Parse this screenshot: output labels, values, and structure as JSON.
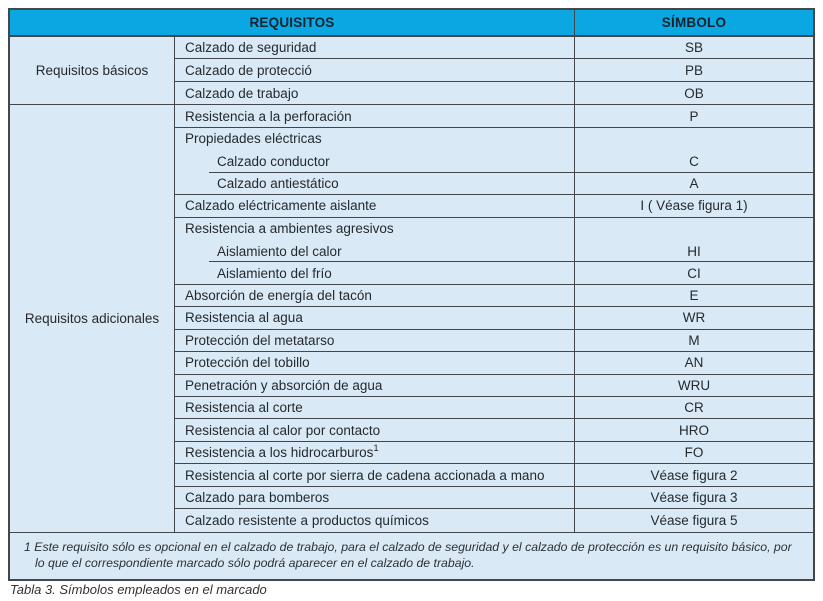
{
  "colors": {
    "header_bg": "#0aa7e2",
    "row_bg": "#d9eaf6",
    "border": "#43474b",
    "header_text": "#10242f",
    "body_text": "#25292d"
  },
  "table": {
    "header": {
      "requisitos": "REQUISITOS",
      "simbolo": "SÍMBOLO"
    },
    "groups": [
      {
        "label": "Requisitos básicos",
        "rows": [
          {
            "req": "Calzado de seguridad",
            "sym": "SB",
            "divider": "full",
            "indent": false
          },
          {
            "req": "Calzado de protecció",
            "sym": "PB",
            "divider": "full",
            "indent": false
          },
          {
            "req": "Calzado de trabajo",
            "sym": "OB",
            "divider": "full",
            "indent": false
          }
        ]
      },
      {
        "label": "Requisitos adicionales",
        "rows": [
          {
            "req": "Resistencia a la perforación",
            "sym": "P",
            "divider": "full",
            "indent": false
          },
          {
            "req": "Propiedades eléctricas",
            "sym": "",
            "divider": "none",
            "indent": false
          },
          {
            "req": "Calzado conductor",
            "sym": "C",
            "divider": "partial",
            "indent": true
          },
          {
            "req": "Calzado antiestático",
            "sym": "A",
            "divider": "full",
            "indent": true
          },
          {
            "req": "Calzado eléctricamente aislante",
            "sym": "I ( Véase figura 1)",
            "divider": "full",
            "indent": false
          },
          {
            "req": "Resistencia a ambientes agresivos",
            "sym": "",
            "divider": "none",
            "indent": false
          },
          {
            "req": "Aislamiento del calor",
            "sym": "HI",
            "divider": "partial",
            "indent": true
          },
          {
            "req": "Aislamiento del frío",
            "sym": "CI",
            "divider": "full",
            "indent": true
          },
          {
            "req": "Absorción de energía del tacón",
            "sym": "E",
            "divider": "full",
            "indent": false
          },
          {
            "req": "Resistencia al agua",
            "sym": "WR",
            "divider": "full",
            "indent": false
          },
          {
            "req": "Protección del metatarso",
            "sym": "M",
            "divider": "full",
            "indent": false
          },
          {
            "req": "Protección del tobillo",
            "sym": "AN",
            "divider": "full",
            "indent": false
          },
          {
            "req": "Penetración y absorción de agua",
            "sym": "WRU",
            "divider": "full",
            "indent": false
          },
          {
            "req": "Resistencia al corte",
            "sym": "CR",
            "divider": "full",
            "indent": false
          },
          {
            "req": "Resistencia al calor por contacto",
            "sym": "HRO",
            "divider": "full",
            "indent": false
          },
          {
            "req": "Resistencia a los hidrocarburos",
            "req_sup": "1",
            "sym": "FO",
            "divider": "full",
            "indent": false
          },
          {
            "req": "Resistencia al corte por sierra de cadena accionada a mano",
            "sym": "Véase figura 2",
            "divider": "full",
            "indent": false
          },
          {
            "req": "Calzado para bomberos",
            "sym": "Véase figura 3",
            "divider": "full",
            "indent": false
          },
          {
            "req": "Calzado resistente a productos químicos",
            "sym": "Véase figura 5",
            "divider": "full",
            "indent": false
          }
        ]
      }
    ],
    "footnote": {
      "marker": "1",
      "text": "Este requisito sólo es opcional en el calzado de trabajo, para el calzado de seguridad y el calzado de protección es un requisito básico, por lo que el correspondiente marcado sólo podrá aparecer en el calzado de trabajo."
    }
  },
  "caption": "Tabla 3. Símbolos empleados en el marcado"
}
